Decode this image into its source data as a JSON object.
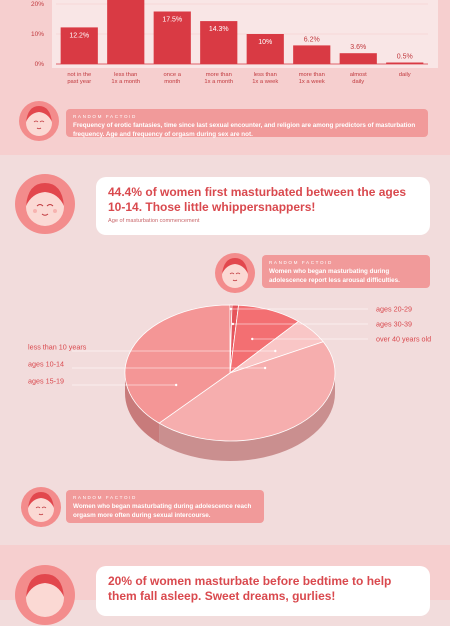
{
  "chart_data": [
    {
      "type": "bar",
      "categories": [
        "not in the past year",
        "less than 1x a month",
        "once a month",
        "more than 1x a month",
        "less than 1x a week",
        "more than 1x a week",
        "almost daily",
        "daily"
      ],
      "values": [
        12.2,
        23.0,
        17.5,
        14.3,
        10,
        6.2,
        3.6,
        0.5
      ],
      "value_labels": [
        "12.2%",
        "",
        "17.5%",
        "14.3%",
        "10%",
        "6.2%",
        "3.6%",
        "0.5%"
      ],
      "y_ticks": [
        "0%",
        "10%",
        "20%"
      ],
      "ylim": [
        0,
        30
      ],
      "grid": true,
      "colors": {
        "bar": "#d93a44",
        "panel": "#f9e6e6",
        "text": "#c0393e"
      }
    },
    {
      "type": "pie",
      "categories": [
        "ages 20-29",
        "ages 30-39",
        "over 40 years old",
        "less than 10 years",
        "ages 10-14",
        "ages 15-19"
      ],
      "values": [
        0.3,
        1.0,
        10.0,
        6.1,
        44.4,
        38.2
      ],
      "colors": [
        "#d63c45",
        "#e5545b",
        "#f36f72",
        "#f9c6c6",
        "#f6aeae",
        "#f49696"
      ],
      "label_side": [
        "right",
        "right",
        "right",
        "left",
        "left",
        "left"
      ]
    }
  ],
  "factoids": [
    {
      "tag": "RANDOM FACTOID",
      "text": "Frequency of erotic fantasies, time since last sexual encounter, and religion are among predictors of masturbation frequency. Age and frequency of orgasm during sex are not."
    },
    {
      "tag": "RANDOM FACTOID",
      "text": "Women who began masturbating during adolescence report less arousal difficulties."
    },
    {
      "tag": "RANDOM FACTOID",
      "text": "Women who began masturbating during adolescence reach orgasm more often during sexual intercourse."
    }
  ],
  "headline1": {
    "text": "44.4% of women first masturbated between the ages 10-14. Those little whippersnappers!",
    "sub": "Age of masturbation commencement"
  },
  "headline2": {
    "text": "20% of women masturbate before bedtime to help them fall asleep. Sweet dreams, gurlies!"
  }
}
